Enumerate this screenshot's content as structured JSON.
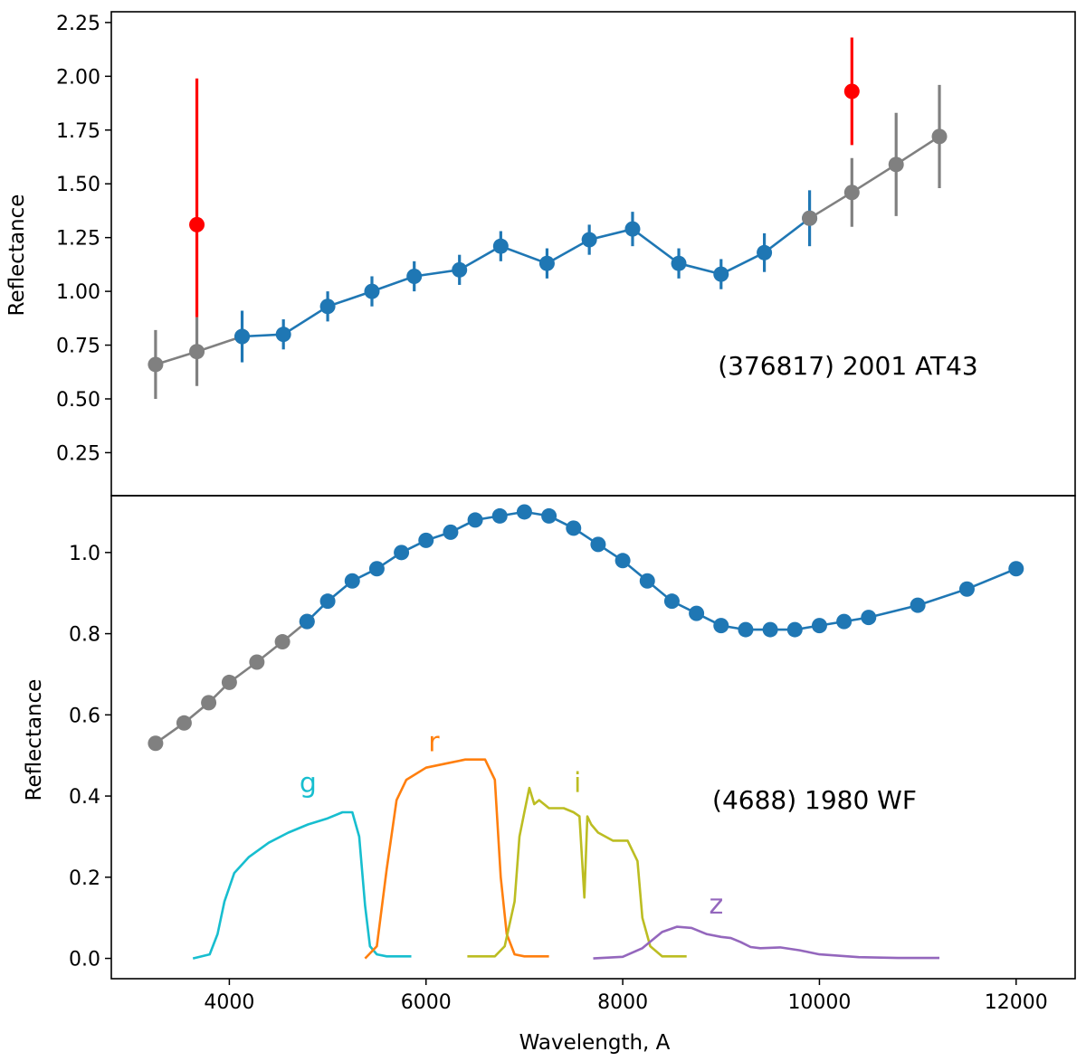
{
  "chart_data": [
    {
      "type": "line",
      "panel": "top",
      "annotation": "(376817) 2001 AT43",
      "xlabel": "",
      "ylabel": "Reflectance",
      "xlim": [
        2800,
        12600
      ],
      "ylim": [
        0.05,
        2.3
      ],
      "xticks": [],
      "yticks": [
        {
          "value": 0.25,
          "label": "0.25"
        },
        {
          "value": 0.5,
          "label": "0.50"
        },
        {
          "value": 0.75,
          "label": "0.75"
        },
        {
          "value": 1.0,
          "label": "1.00"
        },
        {
          "value": 1.25,
          "label": "1.25"
        },
        {
          "value": 1.5,
          "label": "1.50"
        },
        {
          "value": 1.75,
          "label": "1.75"
        },
        {
          "value": 2.0,
          "label": "2.00"
        },
        {
          "value": 2.25,
          "label": "2.25"
        }
      ],
      "series": [
        {
          "name": "extrapolated-blue-end",
          "color": "#808080",
          "points": [
            {
              "x": 3250,
              "y": 0.66,
              "err": 0.16
            },
            {
              "x": 3670,
              "y": 0.72,
              "err": 0.16
            },
            {
              "x": 4130,
              "y": 0.79,
              "err": 0.0
            }
          ]
        },
        {
          "name": "measured",
          "color": "#1f77b4",
          "points": [
            {
              "x": 4130,
              "y": 0.79,
              "err": 0.12
            },
            {
              "x": 4550,
              "y": 0.8,
              "err": 0.07
            },
            {
              "x": 5000,
              "y": 0.93,
              "err": 0.07
            },
            {
              "x": 5450,
              "y": 1.0,
              "err": 0.07
            },
            {
              "x": 5880,
              "y": 1.07,
              "err": 0.07
            },
            {
              "x": 6340,
              "y": 1.1,
              "err": 0.07
            },
            {
              "x": 6760,
              "y": 1.21,
              "err": 0.07
            },
            {
              "x": 7230,
              "y": 1.13,
              "err": 0.07
            },
            {
              "x": 7660,
              "y": 1.24,
              "err": 0.07
            },
            {
              "x": 8100,
              "y": 1.29,
              "err": 0.08
            },
            {
              "x": 8570,
              "y": 1.13,
              "err": 0.07
            },
            {
              "x": 9000,
              "y": 1.08,
              "err": 0.07
            },
            {
              "x": 9440,
              "y": 1.18,
              "err": 0.09
            },
            {
              "x": 9900,
              "y": 1.34,
              "err": 0.13
            }
          ]
        },
        {
          "name": "extrapolated-red-end",
          "color": "#808080",
          "points": [
            {
              "x": 9900,
              "y": 1.34,
              "err": 0.0
            },
            {
              "x": 10330,
              "y": 1.46,
              "err": 0.16
            },
            {
              "x": 10780,
              "y": 1.59,
              "err": 0.24
            },
            {
              "x": 11220,
              "y": 1.72,
              "err": 0.24
            }
          ]
        },
        {
          "name": "photometric-points",
          "color": "#ff0000",
          "line": false,
          "points": [
            {
              "x": 3670,
              "y": 1.31,
              "err_lo": 0.43,
              "err_hi": 0.68
            },
            {
              "x": 10330,
              "y": 1.93,
              "err_lo": 0.25,
              "err_hi": 0.25
            }
          ]
        }
      ]
    },
    {
      "type": "line",
      "panel": "bottom",
      "annotation": "(4688) 1980 WF",
      "xlabel": "Wavelength, A",
      "ylabel": "Reflectance",
      "xlim": [
        2800,
        12600
      ],
      "ylim": [
        -0.05,
        1.14
      ],
      "xticks": [
        {
          "value": 4000,
          "label": "4000"
        },
        {
          "value": 6000,
          "label": "6000"
        },
        {
          "value": 8000,
          "label": "8000"
        },
        {
          "value": 10000,
          "label": "10000"
        },
        {
          "value": 12000,
          "label": "12000"
        }
      ],
      "yticks": [
        {
          "value": 0.0,
          "label": "0.0"
        },
        {
          "value": 0.2,
          "label": "0.2"
        },
        {
          "value": 0.4,
          "label": "0.4"
        },
        {
          "value": 0.6,
          "label": "0.6"
        },
        {
          "value": 0.8,
          "label": "0.8"
        },
        {
          "value": 1.0,
          "label": "1.0"
        }
      ],
      "series": [
        {
          "name": "extrapolated-blue-end",
          "color": "#808080",
          "x": [
            3250,
            3540,
            3790,
            4000,
            4280,
            4540,
            4790
          ],
          "y": [
            0.53,
            0.58,
            0.63,
            0.68,
            0.73,
            0.78,
            0.83
          ]
        },
        {
          "name": "measured",
          "color": "#1f77b4",
          "x": [
            4790,
            5000,
            5250,
            5500,
            5750,
            6000,
            6250,
            6500,
            6750,
            7000,
            7250,
            7500,
            7750,
            8000,
            8250,
            8500,
            8750,
            9000,
            9250,
            9500,
            9750,
            10000,
            10250,
            10500,
            11000,
            11500,
            12000
          ],
          "y": [
            0.83,
            0.88,
            0.93,
            0.96,
            1.0,
            1.03,
            1.05,
            1.08,
            1.09,
            1.1,
            1.09,
            1.06,
            1.02,
            0.98,
            0.93,
            0.88,
            0.85,
            0.82,
            0.81,
            0.81,
            0.81,
            0.82,
            0.83,
            0.84,
            0.87,
            0.91,
            0.96
          ]
        }
      ],
      "filter_curves": [
        {
          "band": "g",
          "color": "#17becf",
          "label_pos": {
            "x": 4800,
            "y": 0.41
          },
          "x": [
            3630,
            3800,
            3880,
            3950,
            4050,
            4200,
            4400,
            4600,
            4800,
            5000,
            5150,
            5250,
            5320,
            5380,
            5430,
            5500,
            5600,
            5850
          ],
          "y": [
            0.0,
            0.01,
            0.06,
            0.14,
            0.21,
            0.25,
            0.285,
            0.31,
            0.33,
            0.345,
            0.36,
            0.36,
            0.3,
            0.13,
            0.03,
            0.01,
            0.005,
            0.005
          ]
        },
        {
          "band": "r",
          "color": "#ff7f0e",
          "label_pos": {
            "x": 6080,
            "y": 0.51
          },
          "x": [
            5380,
            5500,
            5600,
            5700,
            5800,
            6000,
            6200,
            6400,
            6600,
            6700,
            6760,
            6820,
            6900,
            7000,
            7250
          ],
          "y": [
            0.0,
            0.03,
            0.22,
            0.39,
            0.44,
            0.47,
            0.48,
            0.49,
            0.49,
            0.44,
            0.2,
            0.06,
            0.01,
            0.005,
            0.005
          ]
        },
        {
          "band": "i",
          "color": "#bcbd22",
          "label_pos": {
            "x": 7540,
            "y": 0.41
          },
          "x": [
            6420,
            6700,
            6800,
            6900,
            6950,
            7000,
            7050,
            7100,
            7150,
            7250,
            7400,
            7500,
            7560,
            7610,
            7640,
            7680,
            7750,
            7900,
            8050,
            8150,
            8200,
            8280,
            8400,
            8650
          ],
          "y": [
            0.005,
            0.005,
            0.03,
            0.14,
            0.3,
            0.36,
            0.42,
            0.38,
            0.39,
            0.37,
            0.37,
            0.36,
            0.35,
            0.15,
            0.35,
            0.33,
            0.31,
            0.29,
            0.29,
            0.24,
            0.1,
            0.03,
            0.005,
            0.005
          ]
        },
        {
          "band": "z",
          "color": "#9467bd",
          "label_pos": {
            "x": 8950,
            "y": 0.11
          },
          "x": [
            7700,
            8000,
            8200,
            8400,
            8550,
            8700,
            8850,
            9000,
            9100,
            9200,
            9300,
            9400,
            9600,
            9800,
            10000,
            10400,
            10800,
            11220
          ],
          "y": [
            0.0,
            0.004,
            0.025,
            0.065,
            0.078,
            0.075,
            0.06,
            0.053,
            0.05,
            0.04,
            0.028,
            0.025,
            0.027,
            0.02,
            0.01,
            0.003,
            0.001,
            0.001
          ]
        }
      ]
    }
  ]
}
